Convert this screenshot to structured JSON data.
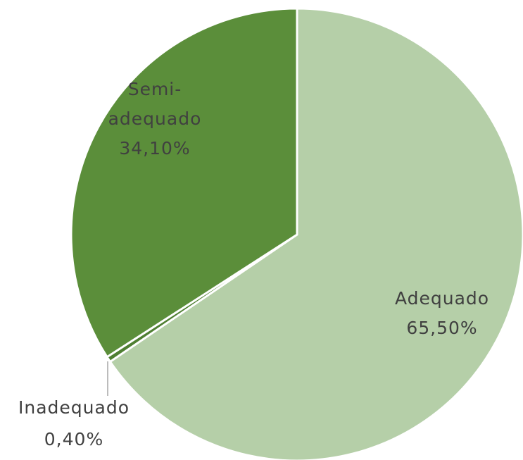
{
  "chart_data": {
    "type": "pie",
    "categories": [
      "Adequado",
      "Inadequado",
      "Semi-adequado"
    ],
    "values": [
      65.5,
      0.4,
      34.1
    ],
    "value_labels": [
      "65,50%",
      "0,40%",
      "34,10%"
    ],
    "colors": [
      "#b5cfa8",
      "#4f7f32",
      "#5b8e3a"
    ]
  }
}
